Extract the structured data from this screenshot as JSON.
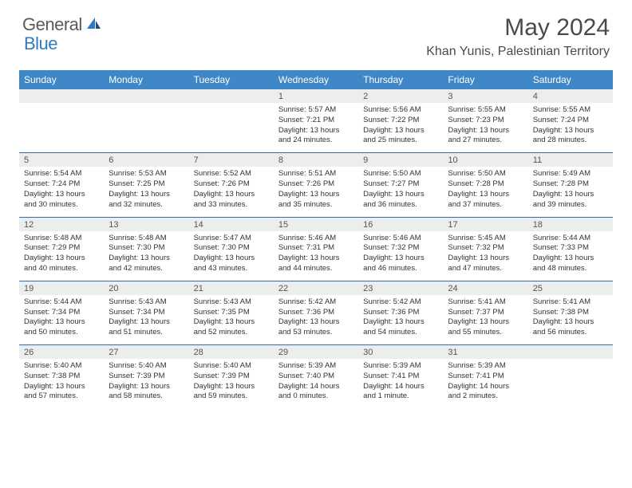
{
  "brand": {
    "part1": "General",
    "part2": "Blue"
  },
  "title": "May 2024",
  "location": "Khan Yunis, Palestinian Territory",
  "dow": [
    "Sunday",
    "Monday",
    "Tuesday",
    "Wednesday",
    "Thursday",
    "Friday",
    "Saturday"
  ],
  "colors": {
    "header_bg": "#3f87c6",
    "daynum_bg": "#eceded",
    "row_divider": "#2f6ea8",
    "brand_gray": "#5a5a5a",
    "brand_blue": "#2f7bbf"
  },
  "weeks": [
    [
      null,
      null,
      null,
      {
        "n": "1",
        "sr": "5:57 AM",
        "ss": "7:21 PM",
        "dl": "13 hours and 24 minutes."
      },
      {
        "n": "2",
        "sr": "5:56 AM",
        "ss": "7:22 PM",
        "dl": "13 hours and 25 minutes."
      },
      {
        "n": "3",
        "sr": "5:55 AM",
        "ss": "7:23 PM",
        "dl": "13 hours and 27 minutes."
      },
      {
        "n": "4",
        "sr": "5:55 AM",
        "ss": "7:24 PM",
        "dl": "13 hours and 28 minutes."
      }
    ],
    [
      {
        "n": "5",
        "sr": "5:54 AM",
        "ss": "7:24 PM",
        "dl": "13 hours and 30 minutes."
      },
      {
        "n": "6",
        "sr": "5:53 AM",
        "ss": "7:25 PM",
        "dl": "13 hours and 32 minutes."
      },
      {
        "n": "7",
        "sr": "5:52 AM",
        "ss": "7:26 PM",
        "dl": "13 hours and 33 minutes."
      },
      {
        "n": "8",
        "sr": "5:51 AM",
        "ss": "7:26 PM",
        "dl": "13 hours and 35 minutes."
      },
      {
        "n": "9",
        "sr": "5:50 AM",
        "ss": "7:27 PM",
        "dl": "13 hours and 36 minutes."
      },
      {
        "n": "10",
        "sr": "5:50 AM",
        "ss": "7:28 PM",
        "dl": "13 hours and 37 minutes."
      },
      {
        "n": "11",
        "sr": "5:49 AM",
        "ss": "7:28 PM",
        "dl": "13 hours and 39 minutes."
      }
    ],
    [
      {
        "n": "12",
        "sr": "5:48 AM",
        "ss": "7:29 PM",
        "dl": "13 hours and 40 minutes."
      },
      {
        "n": "13",
        "sr": "5:48 AM",
        "ss": "7:30 PM",
        "dl": "13 hours and 42 minutes."
      },
      {
        "n": "14",
        "sr": "5:47 AM",
        "ss": "7:30 PM",
        "dl": "13 hours and 43 minutes."
      },
      {
        "n": "15",
        "sr": "5:46 AM",
        "ss": "7:31 PM",
        "dl": "13 hours and 44 minutes."
      },
      {
        "n": "16",
        "sr": "5:46 AM",
        "ss": "7:32 PM",
        "dl": "13 hours and 46 minutes."
      },
      {
        "n": "17",
        "sr": "5:45 AM",
        "ss": "7:32 PM",
        "dl": "13 hours and 47 minutes."
      },
      {
        "n": "18",
        "sr": "5:44 AM",
        "ss": "7:33 PM",
        "dl": "13 hours and 48 minutes."
      }
    ],
    [
      {
        "n": "19",
        "sr": "5:44 AM",
        "ss": "7:34 PM",
        "dl": "13 hours and 50 minutes."
      },
      {
        "n": "20",
        "sr": "5:43 AM",
        "ss": "7:34 PM",
        "dl": "13 hours and 51 minutes."
      },
      {
        "n": "21",
        "sr": "5:43 AM",
        "ss": "7:35 PM",
        "dl": "13 hours and 52 minutes."
      },
      {
        "n": "22",
        "sr": "5:42 AM",
        "ss": "7:36 PM",
        "dl": "13 hours and 53 minutes."
      },
      {
        "n": "23",
        "sr": "5:42 AM",
        "ss": "7:36 PM",
        "dl": "13 hours and 54 minutes."
      },
      {
        "n": "24",
        "sr": "5:41 AM",
        "ss": "7:37 PM",
        "dl": "13 hours and 55 minutes."
      },
      {
        "n": "25",
        "sr": "5:41 AM",
        "ss": "7:38 PM",
        "dl": "13 hours and 56 minutes."
      }
    ],
    [
      {
        "n": "26",
        "sr": "5:40 AM",
        "ss": "7:38 PM",
        "dl": "13 hours and 57 minutes."
      },
      {
        "n": "27",
        "sr": "5:40 AM",
        "ss": "7:39 PM",
        "dl": "13 hours and 58 minutes."
      },
      {
        "n": "28",
        "sr": "5:40 AM",
        "ss": "7:39 PM",
        "dl": "13 hours and 59 minutes."
      },
      {
        "n": "29",
        "sr": "5:39 AM",
        "ss": "7:40 PM",
        "dl": "14 hours and 0 minutes."
      },
      {
        "n": "30",
        "sr": "5:39 AM",
        "ss": "7:41 PM",
        "dl": "14 hours and 1 minute."
      },
      {
        "n": "31",
        "sr": "5:39 AM",
        "ss": "7:41 PM",
        "dl": "14 hours and 2 minutes."
      },
      null
    ]
  ],
  "labels": {
    "sunrise": "Sunrise: ",
    "sunset": "Sunset: ",
    "daylight": "Daylight: "
  }
}
